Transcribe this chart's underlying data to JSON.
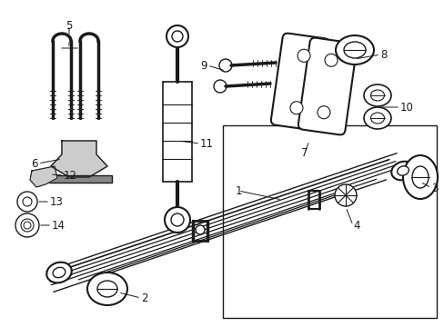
{
  "bg_color": "#ffffff",
  "line_color": "#1a1a1a",
  "figsize": [
    4.89,
    3.6
  ],
  "dpi": 100,
  "font_size": 8.5
}
